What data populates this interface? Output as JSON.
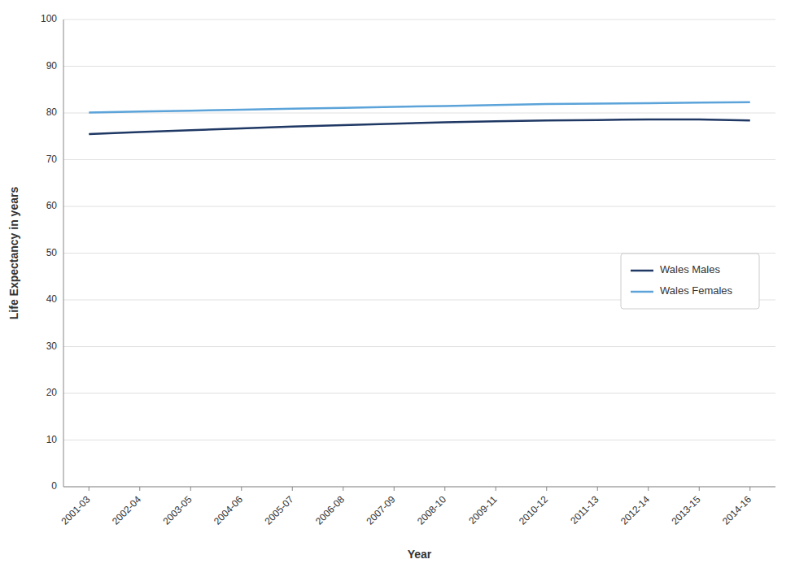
{
  "chart_data": {
    "type": "line",
    "x_label": "Year",
    "y_label": "Life Expectancy in years",
    "categories": [
      "2001-03",
      "2002-04",
      "2003-05",
      "2004-06",
      "2005-07",
      "2006-08",
      "2007-09",
      "2008-10",
      "2009-11",
      "2010-12",
      "2011-13",
      "2012-14",
      "2013-15",
      "2014-16"
    ],
    "series": [
      {
        "name": "Wales Males",
        "color": "#1F3864",
        "values": [
          75.5,
          75.9,
          76.3,
          76.7,
          77.1,
          77.4,
          77.7,
          78.0,
          78.2,
          78.4,
          78.5,
          78.6,
          78.6,
          78.4
        ]
      },
      {
        "name": "Wales Females",
        "color": "#5BA3D9",
        "values": [
          80.1,
          80.3,
          80.5,
          80.7,
          80.9,
          81.1,
          81.3,
          81.5,
          81.7,
          81.9,
          82.0,
          82.1,
          82.2,
          82.3
        ]
      }
    ],
    "ylim": [
      0,
      100
    ],
    "yticks": [
      0,
      10,
      20,
      30,
      40,
      50,
      60,
      70,
      80,
      90,
      100
    ],
    "grid": true,
    "legend": "right"
  }
}
